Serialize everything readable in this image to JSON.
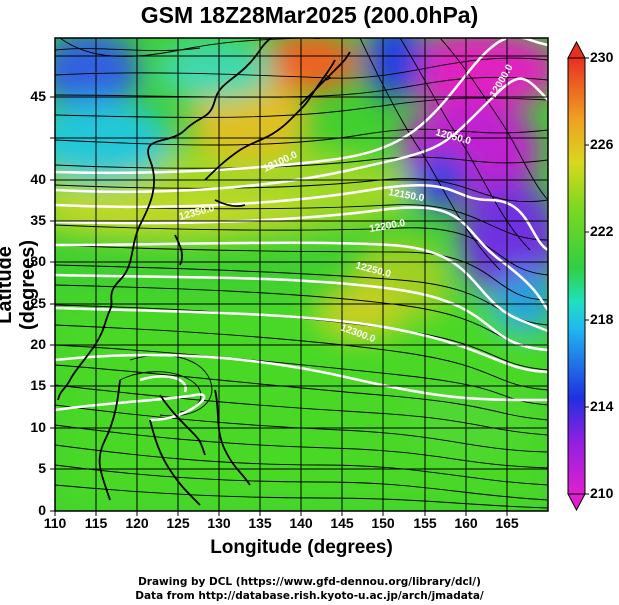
{
  "title": "GSM 18Z28Mar2025 (200.0hPa)",
  "xlabel": "Longitude (degrees)",
  "ylabel": "Latitude  (degrees)",
  "credit_line1": "Drawing by DCL (https://www.gfd-dennou.org/library/dcl/)",
  "credit_line2": "Data from http://database.rish.kyoto-u.ac.jp/arch/jmadata/",
  "x_ticks": [
    "110",
    "115",
    "120",
    "125",
    "130",
    "135",
    "140",
    "145",
    "150",
    "155",
    "160",
    "165"
  ],
  "y_ticks": [
    "0",
    "5",
    "10",
    "15",
    "20",
    "25",
    "30",
    "35",
    "40",
    "45"
  ],
  "colorbar_ticks": [
    "210",
    "214",
    "218",
    "222",
    "226",
    "230"
  ],
  "contour_labels": [
    "12000.0",
    "12050.0",
    "12100.0",
    "12150.0",
    "12200.0",
    "12250.0",
    "12300.0",
    "12350.0"
  ],
  "colors": {
    "cold": "#e020d0",
    "mid_cold": "#2040e0",
    "cyan": "#18d8e0",
    "green": "#30d020",
    "yellow": "#d8d820",
    "warm": "#e83020"
  }
}
